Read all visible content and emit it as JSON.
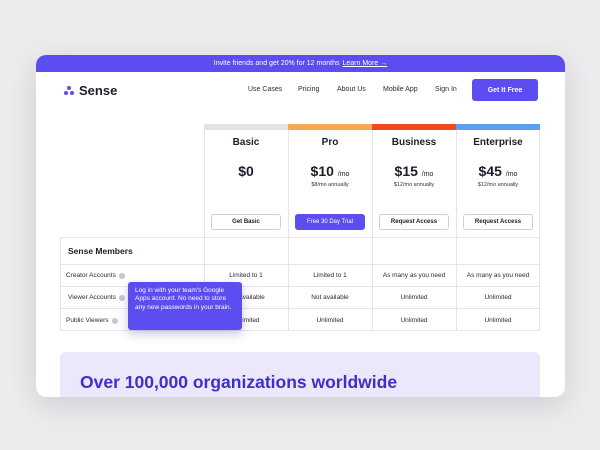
{
  "banner": {
    "text": "Invite friends and get 20% for 12 months",
    "link": "Learn More →"
  },
  "nav": {
    "brand": "Sense",
    "links": [
      "Use Cases",
      "Pricing",
      "About Us",
      "Mobile App",
      "Sign In"
    ],
    "cta": "Get It Free"
  },
  "plans": [
    {
      "name": "Basic",
      "price": "$0",
      "period": "",
      "annual": "",
      "button": "Get Basic",
      "color": "#e3e3e6"
    },
    {
      "name": "Pro",
      "price": "$10",
      "period": "/mo",
      "annual": "$8/mo annually",
      "button": "Free 30 Day Trial",
      "color": "#f7a94e"
    },
    {
      "name": "Business",
      "price": "$15",
      "period": "/mo",
      "annual": "$12/mo annually",
      "button": "Request Access",
      "color": "#f04a1c"
    },
    {
      "name": "Enterprise",
      "price": "$45",
      "period": "/mo",
      "annual": "$12/mo annually",
      "button": "Request Access",
      "color": "#5b9ff5"
    }
  ],
  "section": {
    "title": "Sense Members"
  },
  "rows": [
    {
      "label": "Creator Accounts",
      "values": [
        "Limited to 1",
        "Limited to 1",
        "As many as you need",
        "As many as you need"
      ]
    },
    {
      "label": "Viewer Accounts",
      "values": [
        "Not available",
        "Not available",
        "Unlimited",
        "Unlimited"
      ]
    },
    {
      "label": "Public Viewers",
      "values": [
        "Unlimited",
        "Unlimited",
        "Unlimited",
        "Unlimited"
      ]
    }
  ],
  "tooltip": {
    "text": "Log in with your team's Google Apps account. No need to store any new passwords in your brain."
  },
  "promo": {
    "title": "Over 100,000 organizations worldwide"
  }
}
